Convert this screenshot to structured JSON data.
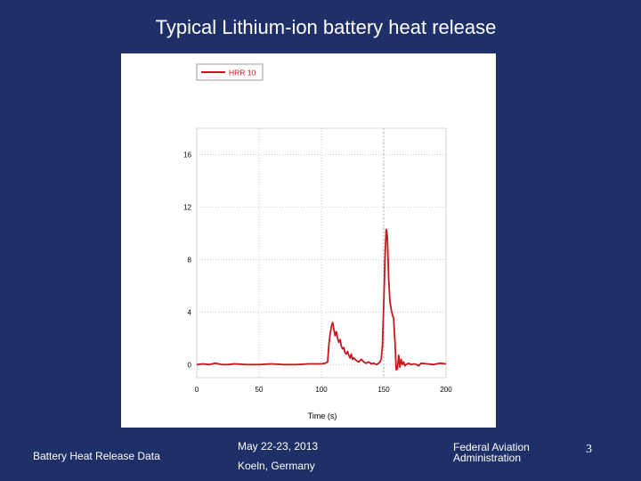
{
  "slide": {
    "title": "Typical Lithium-ion battery heat release",
    "footer_left": "Battery Heat Release Data",
    "footer_date": "May 22-23, 2013",
    "footer_location": "Koeln, Germany",
    "footer_org_line1": "Federal Aviation",
    "footer_org_line2": "Administration",
    "page_number": "3"
  },
  "colors": {
    "background": "#1f3068",
    "series_line": "#c8161d",
    "grid": "#c8c8c8"
  },
  "chart_data": {
    "type": "line",
    "title": "",
    "xlabel": "Time (s)",
    "ylabel": "",
    "xlim": [
      0,
      200
    ],
    "ylim": [
      -1,
      18
    ],
    "xticks": [
      0,
      50,
      100,
      150,
      200
    ],
    "yticks": [
      0,
      4,
      8,
      12,
      16
    ],
    "legend_position": "top-left",
    "grid": "dotted",
    "marker_line_x": 150,
    "series": [
      {
        "name": "HRR 10",
        "x": [
          0,
          5,
          10,
          15,
          20,
          25,
          30,
          40,
          50,
          60,
          70,
          80,
          90,
          100,
          103,
          105,
          106,
          107,
          108,
          109,
          110,
          111,
          112,
          113,
          114,
          115,
          116,
          117,
          118,
          119,
          120,
          121,
          122,
          123,
          124,
          125,
          126,
          128,
          130,
          132,
          134,
          136,
          138,
          140,
          142,
          144,
          146,
          147,
          148,
          149,
          150,
          151,
          152,
          152.5,
          153,
          154,
          155,
          156,
          157,
          158,
          159,
          160,
          161,
          162,
          163,
          164,
          165,
          166,
          167,
          168,
          170,
          172,
          175,
          178,
          180,
          185,
          190,
          195,
          200
        ],
        "y": [
          0.0,
          0.05,
          0.0,
          0.1,
          0.0,
          0.0,
          0.05,
          0.0,
          0.0,
          0.05,
          0.0,
          0.0,
          0.05,
          0.05,
          0.1,
          0.2,
          1.5,
          2.3,
          2.9,
          3.2,
          2.7,
          2.2,
          2.5,
          2.0,
          1.7,
          1.9,
          1.4,
          1.2,
          1.3,
          0.9,
          0.8,
          1.0,
          0.7,
          0.5,
          0.8,
          0.4,
          0.5,
          0.3,
          0.2,
          0.4,
          0.2,
          0.1,
          0.2,
          0.05,
          0.1,
          0.0,
          0.1,
          0.2,
          0.4,
          1.5,
          4.5,
          8.0,
          10.3,
          10.1,
          9.5,
          6.5,
          4.8,
          4.2,
          3.8,
          3.5,
          1.8,
          -0.4,
          -0.3,
          0.7,
          -0.2,
          0.4,
          0.0,
          0.2,
          -0.1,
          0.0,
          0.1,
          0.0,
          0.05,
          -0.1,
          0.1,
          0.05,
          0.0,
          0.1,
          0.05
        ]
      }
    ]
  }
}
